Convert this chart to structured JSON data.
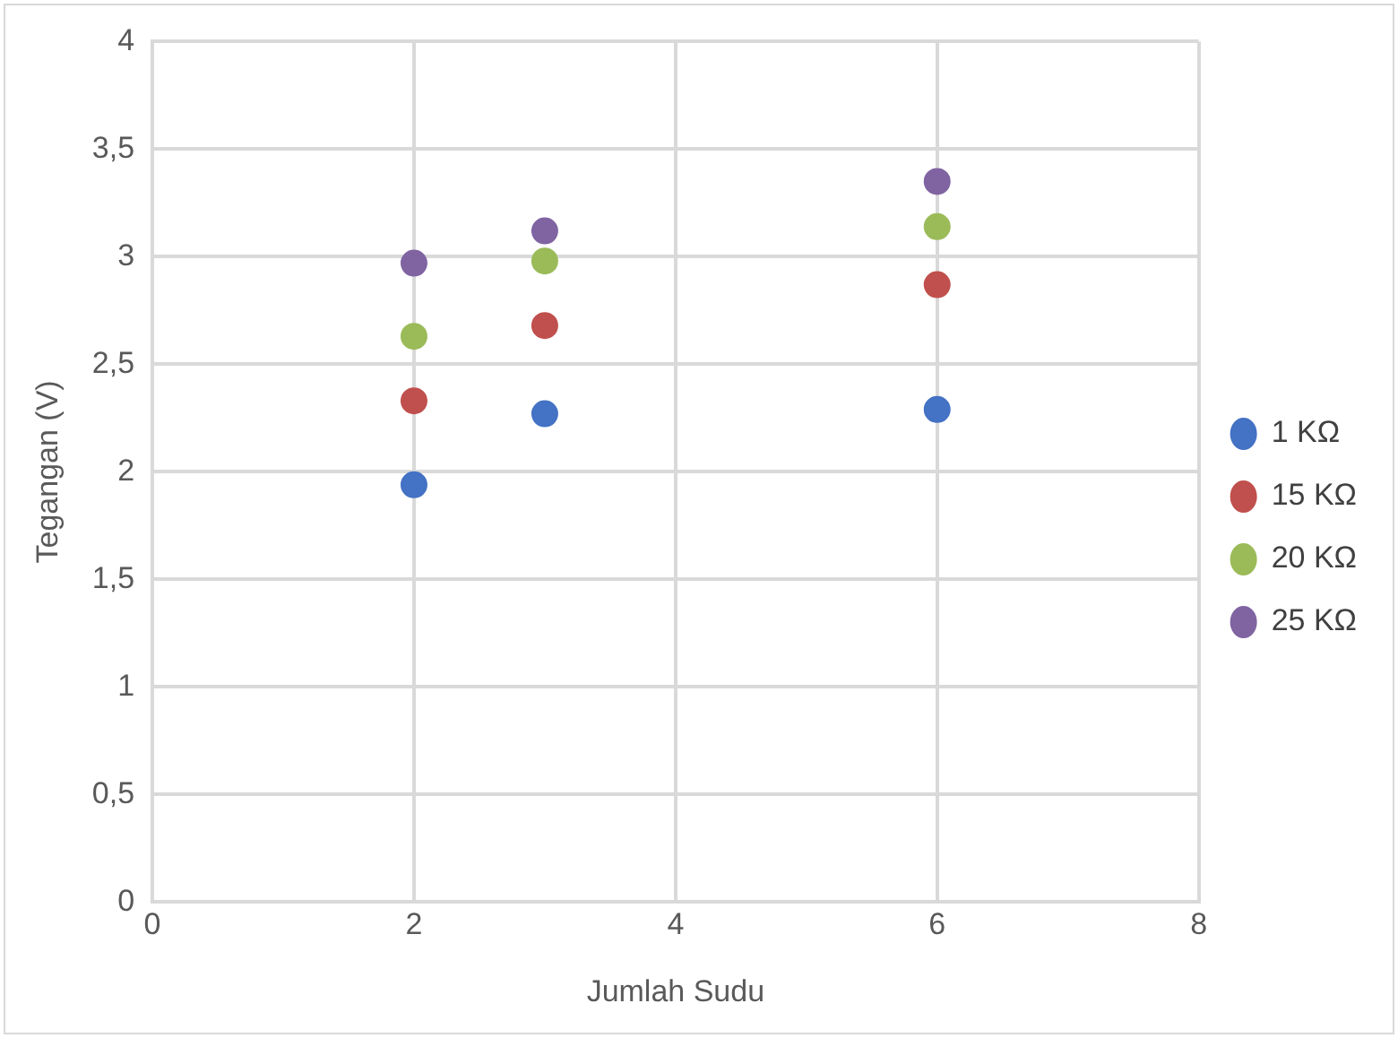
{
  "chart_data": {
    "type": "scatter",
    "xlabel": "Jumlah Sudu",
    "ylabel": "Tegangan (V)",
    "x": [
      2,
      3,
      6
    ],
    "series": [
      {
        "name": "1 KΩ",
        "color": "#4472c4",
        "values": [
          1.94,
          2.27,
          2.29
        ]
      },
      {
        "name": "15 KΩ",
        "color": "#c0504d",
        "values": [
          2.33,
          2.68,
          2.87
        ]
      },
      {
        "name": "20 KΩ",
        "color": "#9bbb59",
        "values": [
          2.63,
          2.98,
          3.14
        ]
      },
      {
        "name": "25 KΩ",
        "color": "#8064a2",
        "values": [
          2.97,
          3.12,
          3.35
        ]
      }
    ],
    "xlim": [
      0,
      8
    ],
    "xticks": [
      0,
      2,
      4,
      6,
      8
    ],
    "ylim": [
      0,
      4
    ],
    "yticks": [
      0,
      {
        "value": 0.5,
        "label": "0,5"
      },
      1,
      {
        "value": 1.5,
        "label": "1,5"
      },
      2,
      {
        "value": 2.5,
        "label": "2,5"
      },
      3,
      {
        "value": 3.5,
        "label": "3,5"
      },
      4
    ],
    "grid": true,
    "legend": "right",
    "marker": "circle"
  }
}
